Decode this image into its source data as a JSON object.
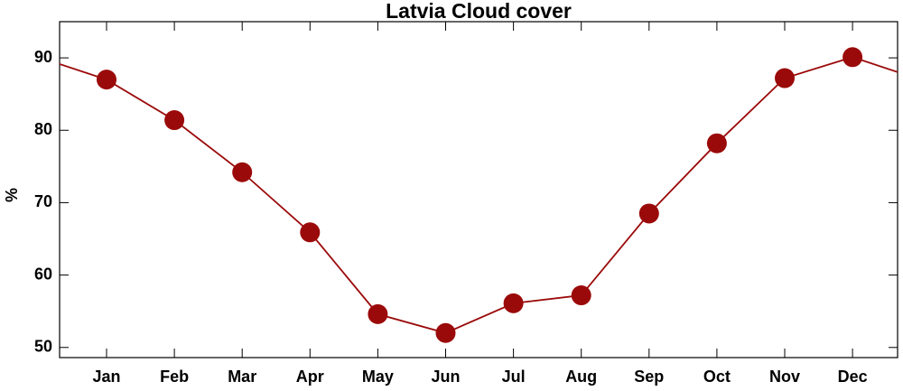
{
  "chart_data": {
    "type": "line",
    "title": "Latvia Cloud cover",
    "y_label": "%",
    "categories": [
      "Jan",
      "Feb",
      "Mar",
      "Apr",
      "May",
      "Jun",
      "Jul",
      "Aug",
      "Sep",
      "Oct",
      "Nov",
      "Dec"
    ],
    "series": [
      {
        "name": "Cloud cover",
        "color": "#9b0a0a",
        "values": [
          87.0,
          81.4,
          74.2,
          65.9,
          54.6,
          52.0,
          56.1,
          57.2,
          68.5,
          78.2,
          87.2,
          90.1
        ]
      }
    ],
    "ylim": [
      48.6,
      95.0
    ],
    "yticks": [
      50,
      60,
      70,
      80,
      90
    ],
    "grid": false
  }
}
